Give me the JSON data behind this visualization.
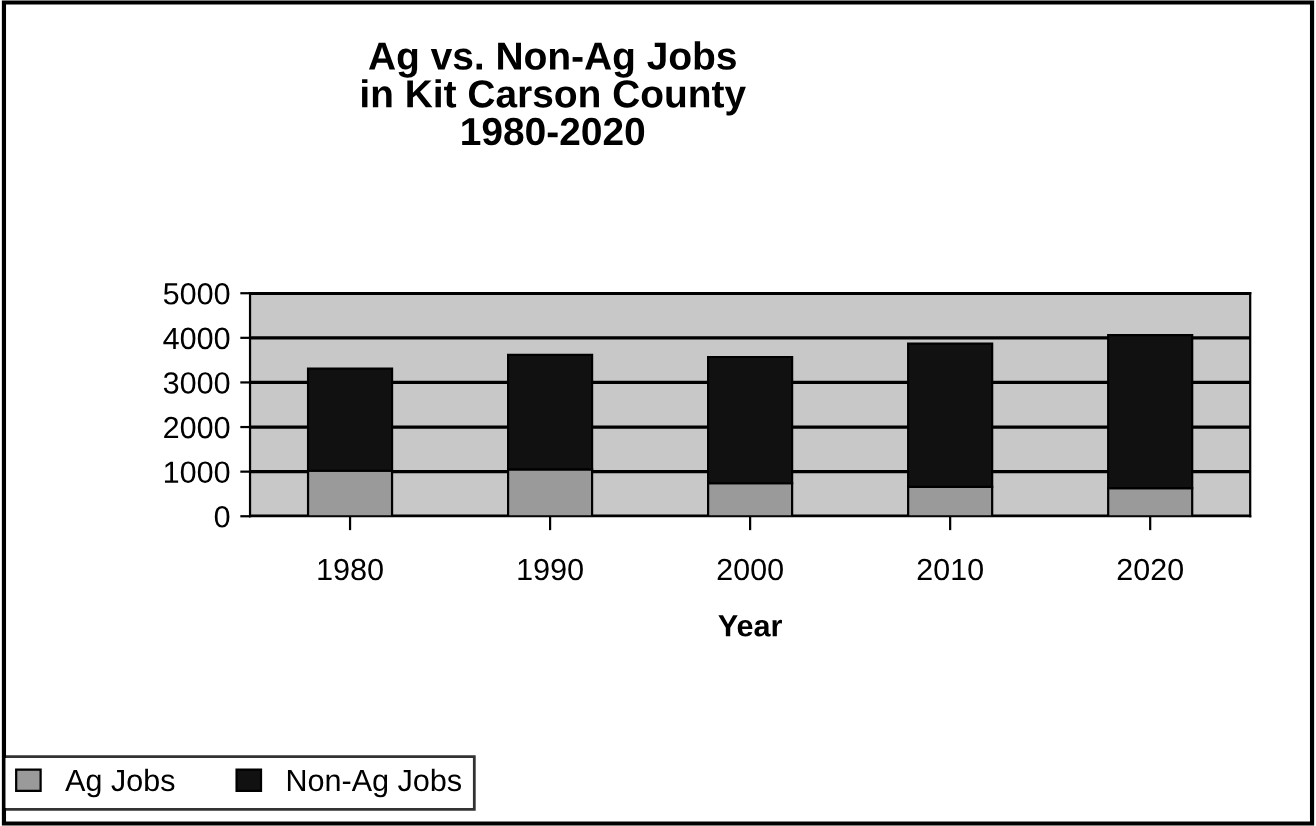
{
  "chart_data": {
    "type": "bar",
    "title": "Ag vs. Non-Ag Jobs\nin Kit Carson County\n1980-2020",
    "xlabel": "Year",
    "categories": [
      "1980",
      "1990",
      "2000",
      "2010",
      "2020"
    ],
    "stacked": true,
    "series": [
      {
        "name": "Ag Jobs",
        "color": "#9a9a9a",
        "values": [
          1020,
          1050,
          740,
          660,
          630
        ]
      },
      {
        "name": "Non-Ag Jobs",
        "color": "#111111",
        "values": [
          2290,
          2570,
          2830,
          3210,
          3430
        ]
      }
    ],
    "ylim": [
      0,
      5000
    ],
    "yticks": [
      0,
      1000,
      2000,
      3000,
      4000,
      5000
    ],
    "grid": "y",
    "legend": "bottom left"
  }
}
